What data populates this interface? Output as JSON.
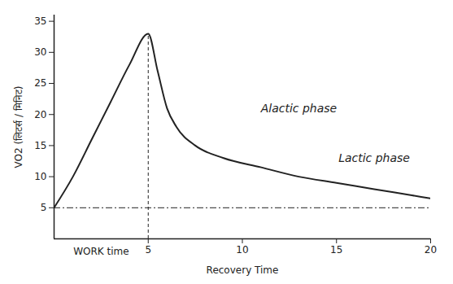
{
  "chart_data": {
    "type": "line",
    "color": "#222222",
    "x_label": "Recovery Time",
    "y_label": "VO2 (लिटर्स / मिनिट)",
    "x": [
      0,
      1,
      2,
      3,
      4,
      5,
      5.5,
      6,
      6.5,
      7.5,
      9,
      11,
      13,
      15,
      17,
      19,
      20
    ],
    "values": [
      5,
      10,
      16,
      22,
      28,
      33,
      27,
      21,
      18,
      15,
      13,
      11.5,
      10,
      9,
      8,
      7,
      6.5
    ],
    "xlim": [
      0,
      20
    ],
    "xticks": [
      5,
      10,
      15,
      20
    ],
    "ylim": [
      0,
      36
    ],
    "yticks": [
      5,
      10,
      15,
      20,
      25,
      30,
      35
    ],
    "baseline": {
      "y": 5,
      "line_style": "dashdot"
    },
    "work_end": {
      "x": 5,
      "line_style": "dashed"
    },
    "work_label": {
      "text": "WORK time",
      "x": 2.5
    },
    "annotations": [
      {
        "text": "Alactic phase",
        "x": 13,
        "y": 21
      },
      {
        "text": "Lactic phase",
        "x": 17,
        "y": 13
      }
    ],
    "grid": false
  }
}
